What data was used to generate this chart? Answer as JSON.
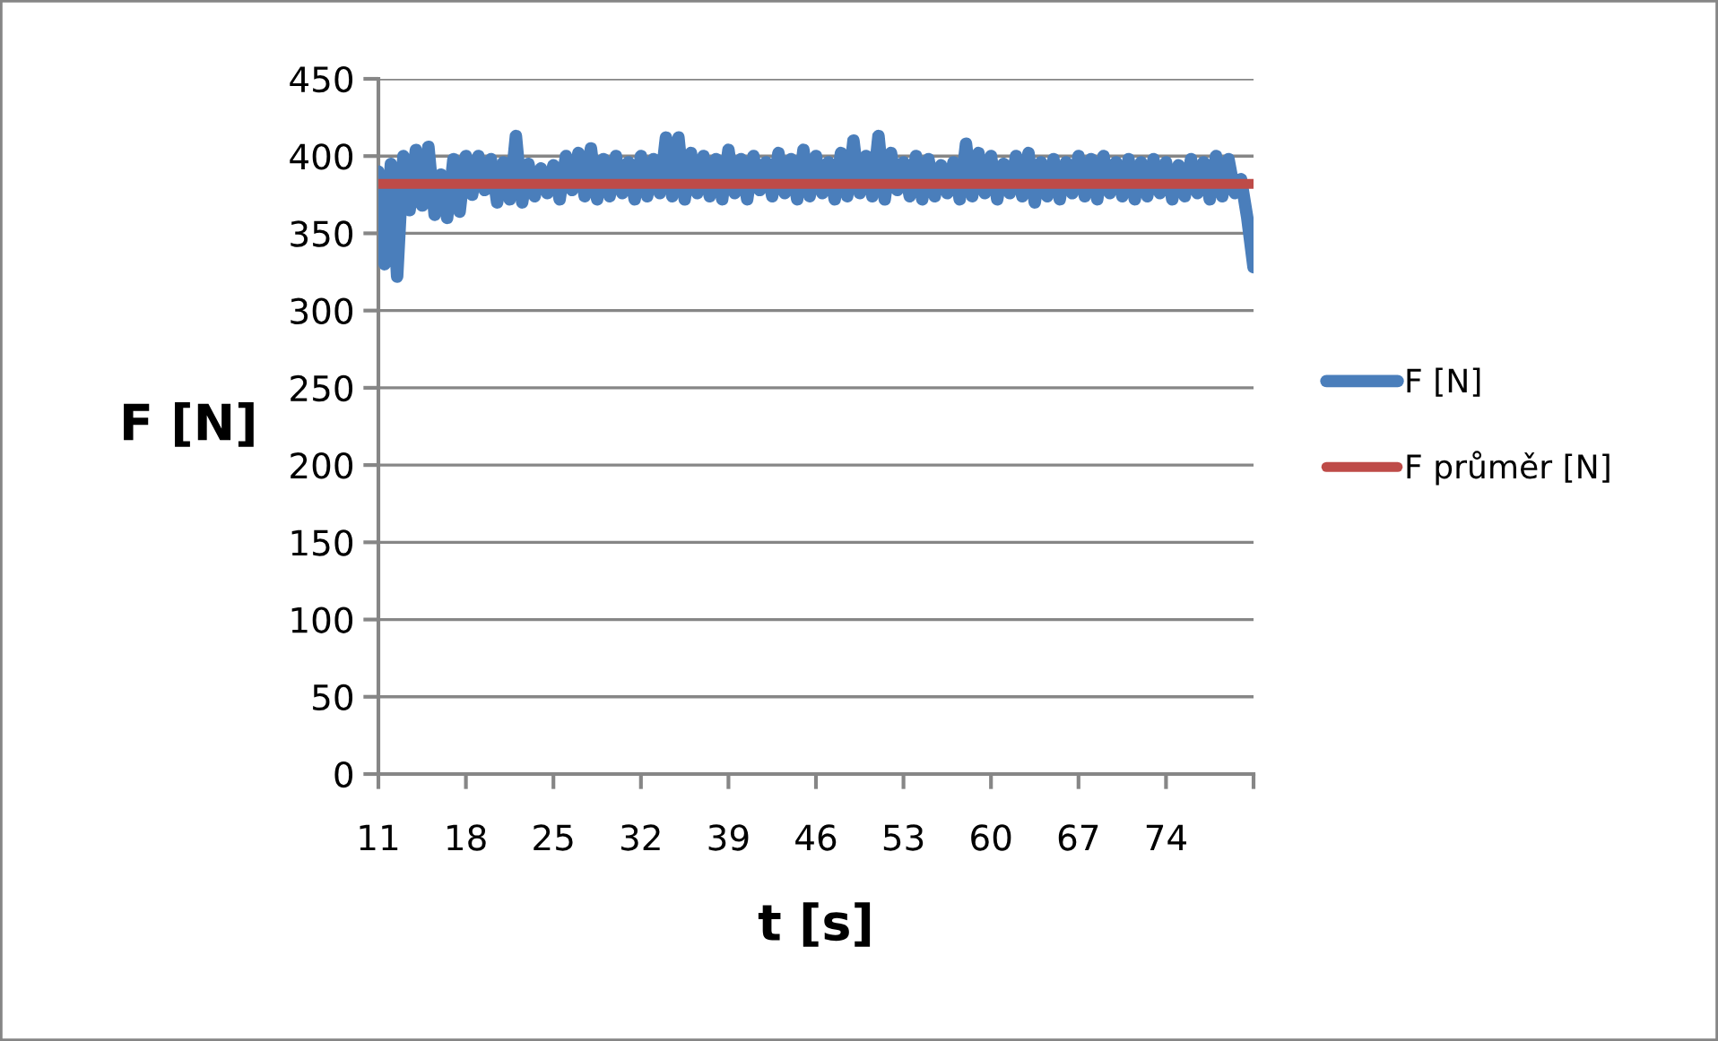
{
  "chart_data": {
    "type": "line",
    "xlabel": "t [s]",
    "ylabel": "F [N]",
    "xlim": [
      11,
      81
    ],
    "ylim": [
      0,
      450
    ],
    "xticks": [
      11,
      18,
      25,
      32,
      39,
      46,
      53,
      60,
      67,
      74,
      {
        "value": 81,
        "label": null
      }
    ],
    "yticks": [
      0,
      50,
      100,
      150,
      200,
      250,
      300,
      350,
      400,
      450
    ],
    "grid": "y",
    "legend": "right",
    "marker": "none",
    "line_style": "solid",
    "series": [
      {
        "name": "F [N]",
        "color": "#4a7ebb",
        "x": [
          11,
          11.5,
          12,
          12.5,
          13,
          13.5,
          14,
          14.5,
          15,
          15.5,
          16,
          16.5,
          17,
          17.5,
          18,
          18.5,
          19,
          19.5,
          20,
          20.5,
          21,
          21.5,
          22,
          22.5,
          23,
          23.5,
          24,
          24.5,
          25,
          25.5,
          26,
          26.5,
          27,
          27.5,
          28,
          28.5,
          29,
          29.5,
          30,
          30.5,
          31,
          31.5,
          32,
          32.5,
          33,
          33.5,
          34,
          34.5,
          35,
          35.5,
          36,
          36.5,
          37,
          37.5,
          38,
          38.5,
          39,
          39.5,
          40,
          40.5,
          41,
          41.5,
          42,
          42.5,
          43,
          43.5,
          44,
          44.5,
          45,
          45.5,
          46,
          46.5,
          47,
          47.5,
          48,
          48.5,
          49,
          49.5,
          50,
          50.5,
          51,
          51.5,
          52,
          52.5,
          53,
          53.5,
          54,
          54.5,
          55,
          55.5,
          56,
          56.5,
          57,
          57.5,
          58,
          58.5,
          59,
          59.5,
          60,
          60.5,
          61,
          61.5,
          62,
          62.5,
          63,
          63.5,
          64,
          64.5,
          65,
          65.5,
          66,
          66.5,
          67,
          67.5,
          68,
          68.5,
          69,
          69.5,
          70,
          70.5,
          71,
          71.5,
          72,
          72.5,
          73,
          73.5,
          74,
          74.5,
          75,
          75.5,
          76,
          76.5,
          77,
          77.5,
          78,
          78.5,
          79,
          79.5,
          80,
          80.5,
          81
        ],
        "values": [
          390,
          330,
          395,
          322,
          400,
          365,
          404,
          368,
          406,
          362,
          388,
          360,
          398,
          364,
          400,
          375,
          400,
          378,
          398,
          370,
          396,
          372,
          413,
          370,
          395,
          374,
          392,
          376,
          394,
          372,
          400,
          378,
          402,
          374,
          405,
          372,
          398,
          374,
          400,
          376,
          396,
          372,
          400,
          374,
          398,
          376,
          412,
          374,
          412,
          372,
          402,
          376,
          400,
          374,
          398,
          372,
          404,
          376,
          398,
          372,
          400,
          378,
          396,
          374,
          402,
          376,
          398,
          372,
          404,
          374,
          400,
          376,
          396,
          372,
          402,
          374,
          410,
          376,
          400,
          374,
          413,
          372,
          402,
          378,
          396,
          374,
          400,
          372,
          398,
          374,
          394,
          376,
          396,
          372,
          408,
          374,
          402,
          376,
          400,
          372,
          395,
          376,
          400,
          374,
          402,
          370,
          396,
          374,
          398,
          372,
          396,
          376,
          400,
          374,
          398,
          372,
          400,
          376,
          396,
          374,
          398,
          372,
          396,
          374,
          398,
          376,
          396,
          372,
          394,
          374,
          398,
          376,
          396,
          372,
          400,
          374,
          398,
          376,
          385,
          360,
          328
        ]
      },
      {
        "name": "F průměr [N]",
        "color": "#be4b48",
        "x": [
          11,
          81
        ],
        "values": [
          382,
          382
        ]
      }
    ]
  }
}
